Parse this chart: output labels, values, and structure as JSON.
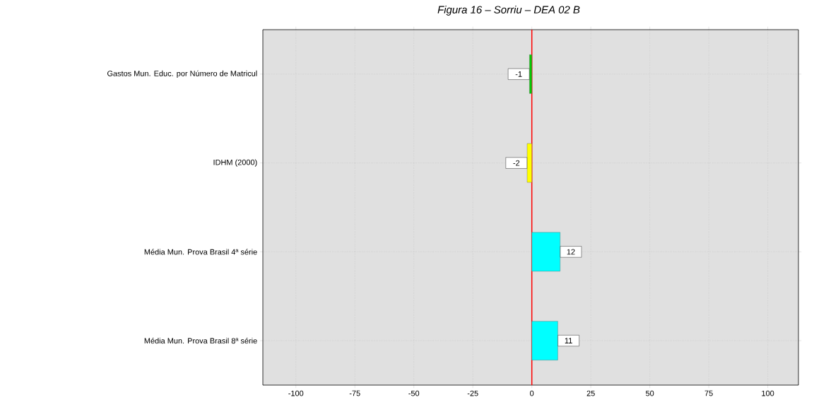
{
  "chart_data": {
    "type": "bar",
    "orientation": "horizontal",
    "title": "Figura 16 – Sorriu – DEA 02 B",
    "categories": [
      "Gastos Mun. Educ. por Número de Matricul",
      "IDHM (2000)",
      "Média Mun. Prova Brasil 4ª série",
      "Média Mun. Prova Brasil 8ª série"
    ],
    "values": [
      -1,
      -2,
      12,
      11
    ],
    "colors": [
      "#00cc00",
      "#ffff00",
      "#00ffff",
      "#00ffff"
    ],
    "data_labels": true,
    "xlim": [
      -114,
      113
    ],
    "xticks": [
      -100,
      -75,
      -50,
      -25,
      0,
      25,
      50,
      75,
      100
    ],
    "grid": true,
    "ref_lines": [
      {
        "axis": "x",
        "value": 0,
        "color": "#ff0000"
      }
    ]
  }
}
